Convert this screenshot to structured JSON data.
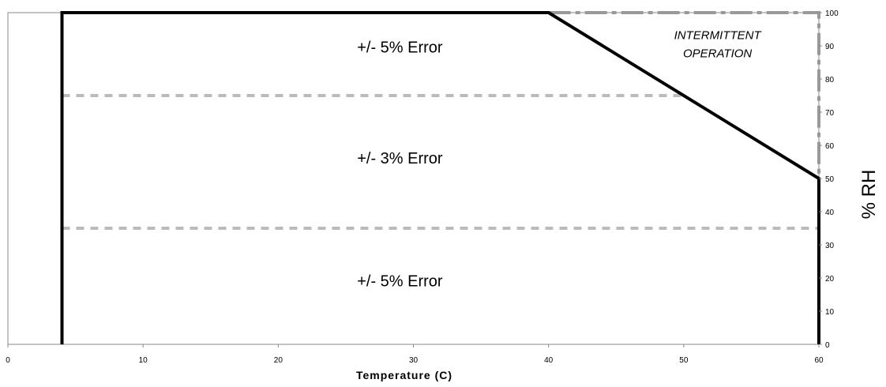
{
  "chart_data": {
    "type": "line",
    "xlabel": "Temperature (C)",
    "ylabel": "% RH",
    "xlim": [
      0,
      60
    ],
    "ylim": [
      0,
      100
    ],
    "x_ticks": [
      0,
      10,
      20,
      30,
      40,
      50,
      60
    ],
    "y_ticks": [
      0,
      10,
      20,
      30,
      40,
      50,
      60,
      70,
      80,
      90,
      100
    ],
    "y_axis_side": "right",
    "grid": false,
    "series": [
      {
        "style": "solid-black-thick",
        "points": [
          [
            4,
            0
          ],
          [
            4,
            100
          ],
          [
            40,
            100
          ],
          [
            60,
            50
          ],
          [
            60,
            0
          ]
        ]
      },
      {
        "style": "dashed-gray",
        "points": [
          [
            4,
            75
          ],
          [
            50,
            75
          ]
        ]
      },
      {
        "style": "dashed-gray",
        "points": [
          [
            4,
            35
          ],
          [
            60,
            35
          ]
        ]
      },
      {
        "style": "dash-dot-gray",
        "points": [
          [
            40,
            100
          ],
          [
            60,
            100
          ],
          [
            60,
            50
          ]
        ]
      }
    ],
    "annotations": [
      {
        "text": "+/- 5% Error",
        "x": 29,
        "y": 88,
        "style": "normal"
      },
      {
        "text": "INTERMITTENT",
        "x": 52.5,
        "y": 92,
        "style": "italic"
      },
      {
        "text": "OPERATION",
        "x": 52.5,
        "y": 86.5,
        "style": "italic"
      },
      {
        "text": "+/- 3% Error",
        "x": 29,
        "y": 54.5,
        "style": "normal"
      },
      {
        "text": "+/- 5% Error",
        "x": 29,
        "y": 17.5,
        "style": "normal"
      }
    ]
  },
  "colors": {
    "boundary": "#000000",
    "dashed": "#bbbbbb",
    "dashdot": "#999999",
    "frame": "#888888"
  }
}
